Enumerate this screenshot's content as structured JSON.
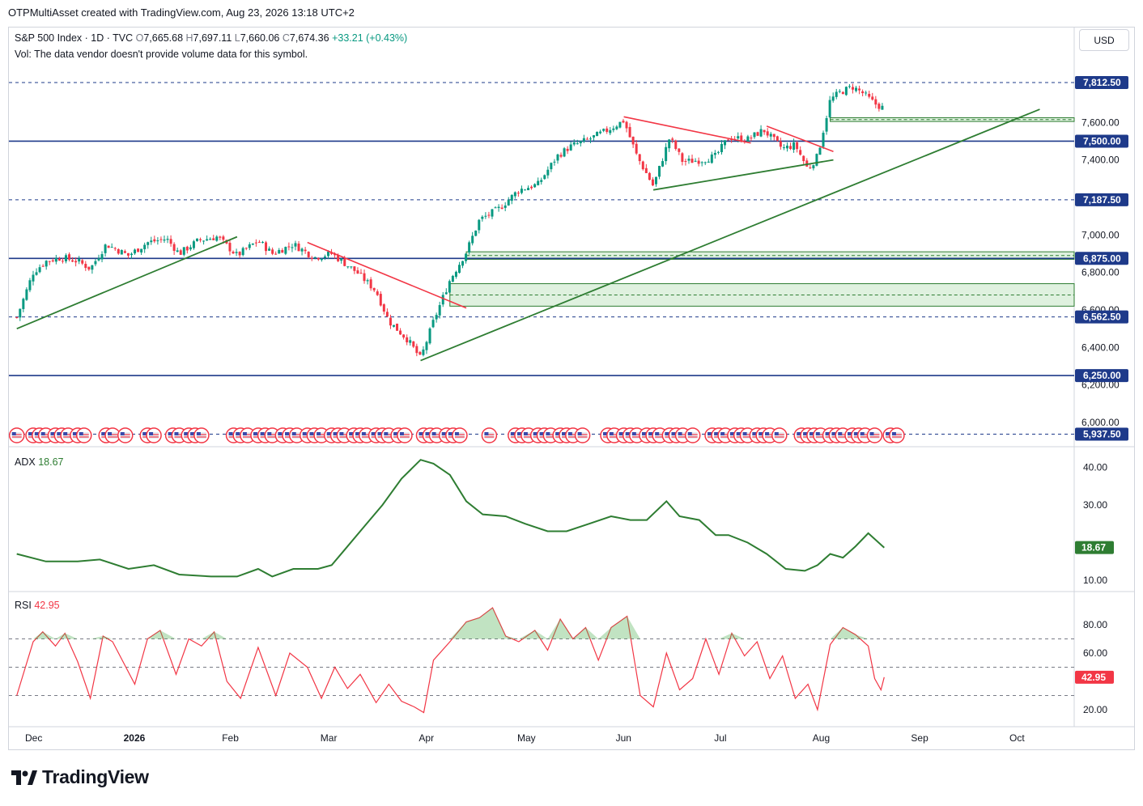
{
  "header": {
    "credit": "OTPMultiAsset created with TradingView.com, Aug 23, 2026 13:18 UTC+2"
  },
  "legend": {
    "symbol": "S&P 500 Index · 1D · TVC",
    "o_label": "O",
    "o": "7,665.68",
    "h_label": "H",
    "h": "7,697.11",
    "l_label": "L",
    "l": "7,660.06",
    "c_label": "C",
    "c": "7,674.36",
    "change": "+33.21 (+0.43%)",
    "vol_note": "Vol: The data vendor doesn't provide volume data for this symbol."
  },
  "currency": "USD",
  "colors": {
    "up": "#089981",
    "down": "#f23645",
    "support": "#2e7d32",
    "level": "#1e3a8a",
    "adx": "#2e7d32",
    "rsi": "#f23645"
  },
  "chart_data": [
    {
      "type": "candlestick",
      "title": "S&P 500 Index",
      "ylim": [
        5900,
        7900
      ],
      "y_ticks": [
        "6,000.00",
        "6,200.00",
        "6,400.00",
        "6,600.00",
        "6,800.00",
        "7,000.00",
        "7,400.00",
        "7,600.00"
      ],
      "x_ticks": [
        "Dec",
        "2026",
        "Feb",
        "Mar",
        "Apr",
        "May",
        "Jun",
        "Jul",
        "Aug",
        "Sep",
        "Oct"
      ],
      "price_levels": [
        {
          "value": 7812.5,
          "label": "7,812.50",
          "style": "dashed"
        },
        {
          "value": 7500,
          "label": "7,500.00",
          "style": "solid"
        },
        {
          "value": 7187.5,
          "label": "7,187.50",
          "style": "dashed"
        },
        {
          "value": 6875,
          "label": "6,875.00",
          "style": "solid"
        },
        {
          "value": 6562.5,
          "label": "6,562.50",
          "style": "dashed"
        },
        {
          "value": 6250,
          "label": "6,250.00",
          "style": "solid"
        },
        {
          "value": 5937.5,
          "label": "5,937.50",
          "style": "dashed"
        }
      ],
      "zones": [
        {
          "from": 6870,
          "to": 6910
        },
        {
          "from": 6620,
          "to": 6740
        },
        {
          "from": 7605,
          "to": 7625
        }
      ],
      "close_path": [
        [
          "Nov 26",
          6560
        ],
        [
          "Dec 1",
          6800
        ],
        [
          "Dec 5",
          6860
        ],
        [
          "Dec 10",
          6880
        ],
        [
          "Dec 15",
          6860
        ],
        [
          "Dec 19",
          6820
        ],
        [
          "Dec 24",
          6950
        ],
        [
          "Dec 31",
          6890
        ],
        [
          "Jan 6",
          6960
        ],
        [
          "Jan 12",
          6980
        ],
        [
          "Jan 16",
          6900
        ],
        [
          "Jan 22",
          6970
        ],
        [
          "Jan 28",
          6990
        ],
        [
          "Feb 3",
          6890
        ],
        [
          "Feb 9",
          6970
        ],
        [
          "Feb 13",
          6900
        ],
        [
          "Feb 19",
          6950
        ],
        [
          "Feb 25",
          6880
        ],
        [
          "Mar 2",
          6900
        ],
        [
          "Mar 6",
          6850
        ],
        [
          "Mar 10",
          6800
        ],
        [
          "Mar 16",
          6700
        ],
        [
          "Mar 20",
          6540
        ],
        [
          "Mar 26",
          6440
        ],
        [
          "Mar 30",
          6340
        ],
        [
          "Apr 3",
          6540
        ],
        [
          "Apr 8",
          6760
        ],
        [
          "Apr 13",
          6910
        ],
        [
          "Apr 17",
          7080
        ],
        [
          "Apr 23",
          7140
        ],
        [
          "Apr 29",
          7240
        ],
        [
          "May 5",
          7270
        ],
        [
          "May 11",
          7420
        ],
        [
          "May 15",
          7470
        ],
        [
          "May 21",
          7510
        ],
        [
          "May 27",
          7560
        ],
        [
          "Jun 1",
          7610
        ],
        [
          "Jun 5",
          7420
        ],
        [
          "Jun 10",
          7260
        ],
        [
          "Jun 15",
          7520
        ],
        [
          "Jun 19",
          7390
        ],
        [
          "Jun 25",
          7400
        ],
        [
          "Jun 29",
          7420
        ],
        [
          "Jul 3",
          7520
        ],
        [
          "Jul 9",
          7510
        ],
        [
          "Jul 14",
          7560
        ],
        [
          "Jul 20",
          7460
        ],
        [
          "Jul 24",
          7480
        ],
        [
          "Jul 28",
          7350
        ],
        [
          "Jul 31",
          7420
        ],
        [
          "Aug 4",
          7720
        ],
        [
          "Aug 7",
          7760
        ],
        [
          "Aug 11",
          7790
        ],
        [
          "Aug 14",
          7760
        ],
        [
          "Aug 18",
          7700
        ],
        [
          "Aug 21",
          7674
        ]
      ],
      "trendlines": [
        {
          "color": "support",
          "from": [
            "Nov 26",
            6500
          ],
          "to": [
            "Feb 3",
            6990
          ]
        },
        {
          "color": "down",
          "from": [
            "Feb 23",
            6960
          ],
          "to": [
            "Apr 13",
            6610
          ]
        },
        {
          "color": "support",
          "from": [
            "Mar 30",
            6330
          ],
          "to": [
            "Oct 8",
            7670
          ]
        },
        {
          "color": "down",
          "from": [
            "Jun 1",
            7630
          ],
          "to": [
            "Jul 10",
            7490
          ]
        },
        {
          "color": "down",
          "from": [
            "Jul 15",
            7580
          ],
          "to": [
            "Aug 5",
            7445
          ]
        },
        {
          "color": "support",
          "from": [
            "Jun 10",
            7240
          ],
          "to": [
            "Aug 5",
            7400
          ]
        }
      ],
      "event_markers": [
        "US"
      ]
    },
    {
      "type": "line",
      "title": "ADX",
      "series": [
        {
          "name": "ADX",
          "last": "18.67",
          "points": [
            [
              "Nov 26",
              17
            ],
            [
              "Dec 5",
              15
            ],
            [
              "Dec 15",
              15
            ],
            [
              "Dec 22",
              15.5
            ],
            [
              "Dec 31",
              13
            ],
            [
              "Jan 8",
              14
            ],
            [
              "Jan 16",
              11.5
            ],
            [
              "Jan 26",
              11
            ],
            [
              "Feb 3",
              11
            ],
            [
              "Feb 9",
              13
            ],
            [
              "Feb 13",
              11
            ],
            [
              "Feb 19",
              13
            ],
            [
              "Feb 26",
              13
            ],
            [
              "Mar 2",
              14
            ],
            [
              "Mar 6",
              18
            ],
            [
              "Mar 12",
              24
            ],
            [
              "Mar 18",
              30
            ],
            [
              "Mar 24",
              37
            ],
            [
              "Mar 30",
              42
            ],
            [
              "Apr 3",
              41
            ],
            [
              "Apr 8",
              38
            ],
            [
              "Apr 13",
              31
            ],
            [
              "Apr 18",
              27.5
            ],
            [
              "Apr 25",
              27
            ],
            [
              "May 1",
              25
            ],
            [
              "May 8",
              23
            ],
            [
              "May 14",
              23
            ],
            [
              "May 21",
              25
            ],
            [
              "May 28",
              27
            ],
            [
              "Jun 3",
              26
            ],
            [
              "Jun 8",
              26
            ],
            [
              "Jun 14",
              31
            ],
            [
              "Jun 18",
              27
            ],
            [
              "Jun 24",
              26
            ],
            [
              "Jun 29",
              22
            ],
            [
              "Jul 3",
              22
            ],
            [
              "Jul 9",
              20
            ],
            [
              "Jul 15",
              17
            ],
            [
              "Jul 21",
              13
            ],
            [
              "Jul 27",
              12.5
            ],
            [
              "Jul 31",
              14
            ],
            [
              "Aug 4",
              17
            ],
            [
              "Aug 8",
              16
            ],
            [
              "Aug 12",
              19
            ],
            [
              "Aug 16",
              22.5
            ],
            [
              "Aug 21",
              18.67
            ]
          ]
        }
      ],
      "y_ticks": [
        "10.00",
        "30.00",
        "40.00"
      ],
      "ylim": [
        6,
        44
      ]
    },
    {
      "type": "line",
      "title": "RSI",
      "series": [
        {
          "name": "RSI",
          "last": "42.95",
          "points": [
            [
              "Nov 26",
              30
            ],
            [
              "Dec 1",
              68
            ],
            [
              "Dec 4",
              75
            ],
            [
              "Dec 8",
              65
            ],
            [
              "Dec 11",
              74
            ],
            [
              "Dec 15",
              54
            ],
            [
              "Dec 19",
              28
            ],
            [
              "Dec 23",
              72
            ],
            [
              "Dec 26",
              68
            ],
            [
              "Jan 2",
              38
            ],
            [
              "Jan 6",
              70
            ],
            [
              "Jan 10",
              76
            ],
            [
              "Jan 15",
              45
            ],
            [
              "Jan 19",
              70
            ],
            [
              "Jan 23",
              65
            ],
            [
              "Jan 27",
              75
            ],
            [
              "Jan 31",
              40
            ],
            [
              "Feb 4",
              28
            ],
            [
              "Feb 9",
              64
            ],
            [
              "Feb 14",
              30
            ],
            [
              "Feb 18",
              60
            ],
            [
              "Feb 23",
              50
            ],
            [
              "Feb 27",
              28
            ],
            [
              "Mar 3",
              50
            ],
            [
              "Mar 7",
              35
            ],
            [
              "Mar 11",
              45
            ],
            [
              "Mar 16",
              25
            ],
            [
              "Mar 20",
              38
            ],
            [
              "Mar 24",
              26
            ],
            [
              "Mar 28",
              22
            ],
            [
              "Mar 31",
              18
            ],
            [
              "Apr 3",
              55
            ],
            [
              "Apr 8",
              68
            ],
            [
              "Apr 13",
              82
            ],
            [
              "Apr 17",
              85
            ],
            [
              "Apr 21",
              92
            ],
            [
              "Apr 25",
              72
            ],
            [
              "Apr 29",
              68
            ],
            [
              "May 4",
              76
            ],
            [
              "May 8",
              62
            ],
            [
              "May 12",
              84
            ],
            [
              "May 16",
              70
            ],
            [
              "May 20",
              78
            ],
            [
              "May 24",
              55
            ],
            [
              "May 28",
              78
            ],
            [
              "Jun 2",
              86
            ],
            [
              "Jun 6",
              30
            ],
            [
              "Jun 10",
              22
            ],
            [
              "Jun 14",
              60
            ],
            [
              "Jun 18",
              34
            ],
            [
              "Jun 22",
              42
            ],
            [
              "Jun 26",
              70
            ],
            [
              "Jun 30",
              45
            ],
            [
              "Jul 4",
              74
            ],
            [
              "Jul 8",
              58
            ],
            [
              "Jul 12",
              68
            ],
            [
              "Jul 16",
              42
            ],
            [
              "Jul 20",
              58
            ],
            [
              "Jul 24",
              28
            ],
            [
              "Jul 28",
              38
            ],
            [
              "Jul 31",
              20
            ],
            [
              "Aug 4",
              66
            ],
            [
              "Aug 8",
              78
            ],
            [
              "Aug 12",
              73
            ],
            [
              "Aug 16",
              65
            ],
            [
              "Aug 18",
              42
            ],
            [
              "Aug 20",
              34
            ],
            [
              "Aug 21",
              42.95
            ]
          ]
        }
      ],
      "y_ticks": [
        "20.00",
        "60.00",
        "80.00"
      ],
      "levels": [
        70,
        50,
        30
      ],
      "ylim": [
        10,
        100
      ]
    }
  ]
}
